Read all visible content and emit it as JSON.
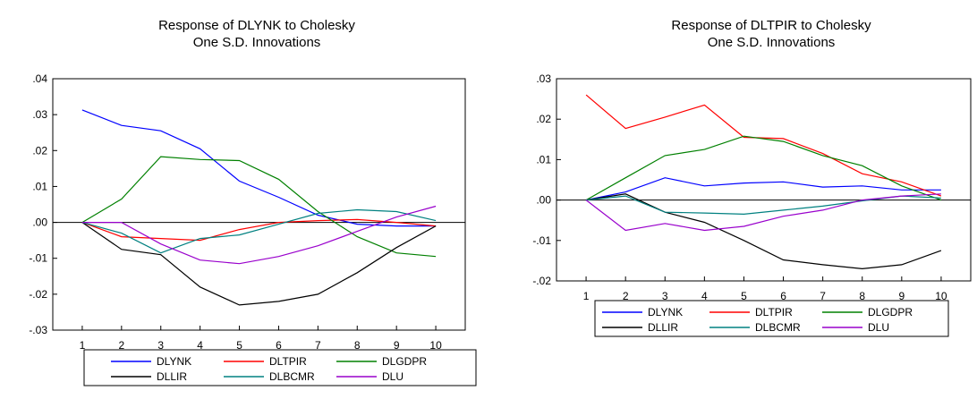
{
  "chart_data": [
    {
      "type": "line",
      "title": "Response of DLYNK to Cholesky",
      "subtitle": "One S.D. Innovations",
      "xlabel": "",
      "ylabel": "",
      "x": [
        1,
        2,
        3,
        4,
        5,
        6,
        7,
        8,
        9,
        10
      ],
      "ylim": [
        -0.03,
        0.04
      ],
      "yticks": [
        0.04,
        0.03,
        0.02,
        0.01,
        0.0,
        -0.01,
        -0.02,
        -0.03
      ],
      "ytick_labels": [
        ".04",
        ".03",
        ".02",
        ".01",
        ".00",
        "-.01",
        "-.02",
        "-.03"
      ],
      "legend_position": "bottom",
      "zero_line": true,
      "series": [
        {
          "name": "DLYNK",
          "color": "#0000ff",
          "values": [
            0.0313,
            0.027,
            0.0255,
            0.0205,
            0.0115,
            0.007,
            0.002,
            -0.0005,
            -0.001,
            -0.001
          ]
        },
        {
          "name": "DLTPIR",
          "color": "#ff0000",
          "values": [
            0.0,
            -0.004,
            -0.0045,
            -0.005,
            -0.002,
            0.0,
            0.0005,
            0.0008,
            0.0,
            -0.001
          ]
        },
        {
          "name": "DLGDPR",
          "color": "#008000",
          "values": [
            0.0,
            0.0065,
            0.0183,
            0.0175,
            0.0172,
            0.012,
            0.003,
            -0.004,
            -0.0085,
            -0.0095
          ]
        },
        {
          "name": "DLLIR",
          "color": "#000000",
          "values": [
            0.0,
            -0.0075,
            -0.009,
            -0.018,
            -0.023,
            -0.022,
            -0.02,
            -0.014,
            -0.007,
            -0.001
          ]
        },
        {
          "name": "DLBCMR",
          "color": "#008080",
          "values": [
            0.0,
            -0.003,
            -0.0085,
            -0.0045,
            -0.0035,
            -0.0005,
            0.0025,
            0.0035,
            0.003,
            0.0005
          ]
        },
        {
          "name": "DLU",
          "color": "#9900cc",
          "values": [
            0.0,
            0.0,
            -0.006,
            -0.0105,
            -0.0115,
            -0.0095,
            -0.0065,
            -0.0025,
            0.0015,
            0.0045
          ]
        }
      ]
    },
    {
      "type": "line",
      "title": "Response of DLTPIR to Cholesky",
      "subtitle": "One S.D. Innovations",
      "xlabel": "",
      "ylabel": "",
      "x": [
        1,
        2,
        3,
        4,
        5,
        6,
        7,
        8,
        9,
        10
      ],
      "ylim": [
        -0.02,
        0.03
      ],
      "yticks": [
        0.03,
        0.02,
        0.01,
        0.0,
        -0.01,
        -0.02
      ],
      "ytick_labels": [
        ".03",
        ".02",
        ".01",
        ".00",
        "-.01",
        "-.02"
      ],
      "legend_position": "bottom",
      "zero_line": true,
      "series": [
        {
          "name": "DLYNK",
          "color": "#0000ff",
          "values": [
            0.0,
            0.002,
            0.0055,
            0.0035,
            0.0042,
            0.0045,
            0.0032,
            0.0035,
            0.0025,
            0.0025
          ]
        },
        {
          "name": "DLTPIR",
          "color": "#ff0000",
          "values": [
            0.026,
            0.0177,
            0.0205,
            0.0235,
            0.0155,
            0.0152,
            0.0115,
            0.0065,
            0.0045,
            0.001
          ]
        },
        {
          "name": "DLGDPR",
          "color": "#008000",
          "values": [
            0.0,
            0.0055,
            0.011,
            0.0125,
            0.0158,
            0.0145,
            0.011,
            0.0085,
            0.0035,
            0.0
          ]
        },
        {
          "name": "DLLIR",
          "color": "#000000",
          "values": [
            0.0,
            0.0015,
            -0.003,
            -0.0055,
            -0.01,
            -0.0148,
            -0.016,
            -0.017,
            -0.016,
            -0.0125
          ]
        },
        {
          "name": "DLBCMR",
          "color": "#008080",
          "values": [
            0.0,
            0.001,
            -0.003,
            -0.0032,
            -0.0035,
            -0.0025,
            -0.0015,
            -0.0002,
            0.001,
            0.0005
          ]
        },
        {
          "name": "DLU",
          "color": "#9900cc",
          "values": [
            0.0,
            -0.0075,
            -0.0058,
            -0.0075,
            -0.0065,
            -0.004,
            -0.0025,
            0.0,
            0.001,
            0.0015
          ]
        }
      ]
    }
  ]
}
